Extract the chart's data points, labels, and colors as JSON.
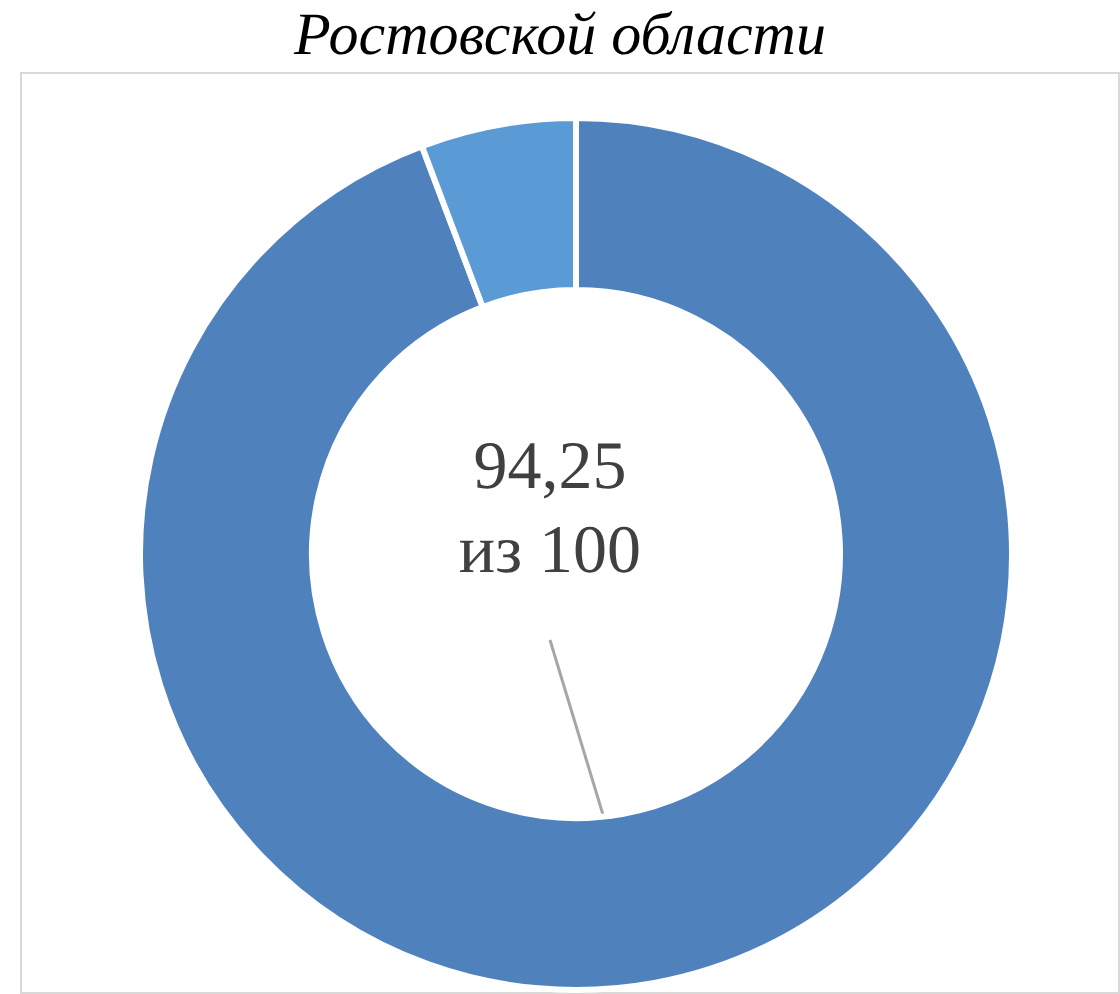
{
  "chart_data": {
    "type": "donut",
    "title": "Ростовской области",
    "categories": [
      null,
      null
    ],
    "values": [
      94.25,
      5.75
    ],
    "colors": [
      "#4f81bd",
      "#5b9bd5"
    ],
    "value_labels": [
      "94,25 из 100",
      null
    ],
    "legend": false
  }
}
